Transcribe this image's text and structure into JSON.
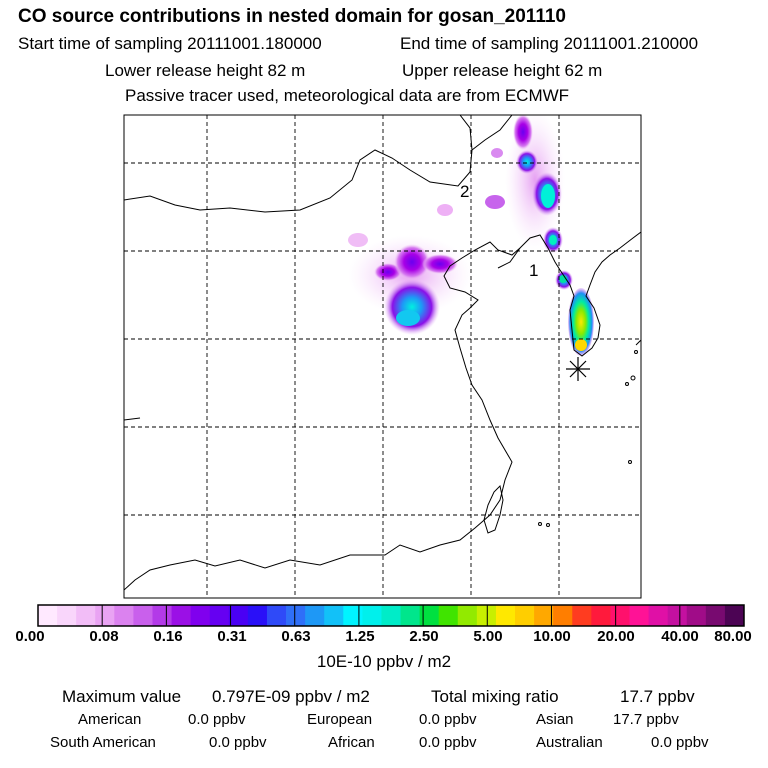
{
  "header": {
    "title": "CO  source contributions in nested domain for gosan_201110",
    "start_label": "Start time of sampling 20111001.180000",
    "end_label": "End time of sampling 20111001.210000",
    "lower_label": "Lower release height   82 m",
    "upper_label": "Upper release height   62 m",
    "note": "Passive tracer used, meteorological data are from ECMWF"
  },
  "map": {
    "label_1": "1",
    "label_2": "2"
  },
  "colorbar": {
    "ticks": [
      "0.00",
      "0.08",
      "0.16",
      "0.31",
      "0.63",
      "1.25",
      "2.50",
      "5.00",
      "10.00",
      "20.00",
      "40.00",
      "80.00"
    ],
    "unit": "10E-10 ppbv / m2",
    "colors": [
      "#ffe9ff",
      "#f9d6fb",
      "#f2bdf7",
      "#e9a3f3",
      "#db82ef",
      "#c960ec",
      "#b33ae8",
      "#9b10e6",
      "#8000ee",
      "#6600f2",
      "#4a00f4",
      "#2a10f8",
      "#2f4af8",
      "#2f6ff8",
      "#1e98f6",
      "#12c1f8",
      "#00f4ff",
      "#00f0ec",
      "#00ecc8",
      "#00e68c",
      "#00e040",
      "#40e400",
      "#92ea00",
      "#c8ef00",
      "#ffe800",
      "#ffce00",
      "#ffa800",
      "#ff7e00",
      "#ff3c20",
      "#ff1a3c",
      "#ff106c",
      "#ff1296",
      "#e010a6",
      "#c410a0",
      "#a00c88",
      "#780a70",
      "#4c0454"
    ]
  },
  "stats": {
    "max_label": "Maximum value",
    "max_value": "0.797E-09 ppbv / m2",
    "total_label": "Total mixing ratio",
    "total_value": "17.7 ppbv"
  },
  "regions": {
    "american_label": "American",
    "american_value": "0.0 ppbv",
    "european_label": "European",
    "european_value": "0.0 ppbv",
    "asian_label": "Asian",
    "asian_value": "17.7 ppbv",
    "south_american_label": "South American",
    "south_american_value": "0.0 ppbv",
    "african_label": "African",
    "african_value": "0.0 ppbv",
    "australian_label": "Australian",
    "australian_value": "0.0 ppbv"
  }
}
